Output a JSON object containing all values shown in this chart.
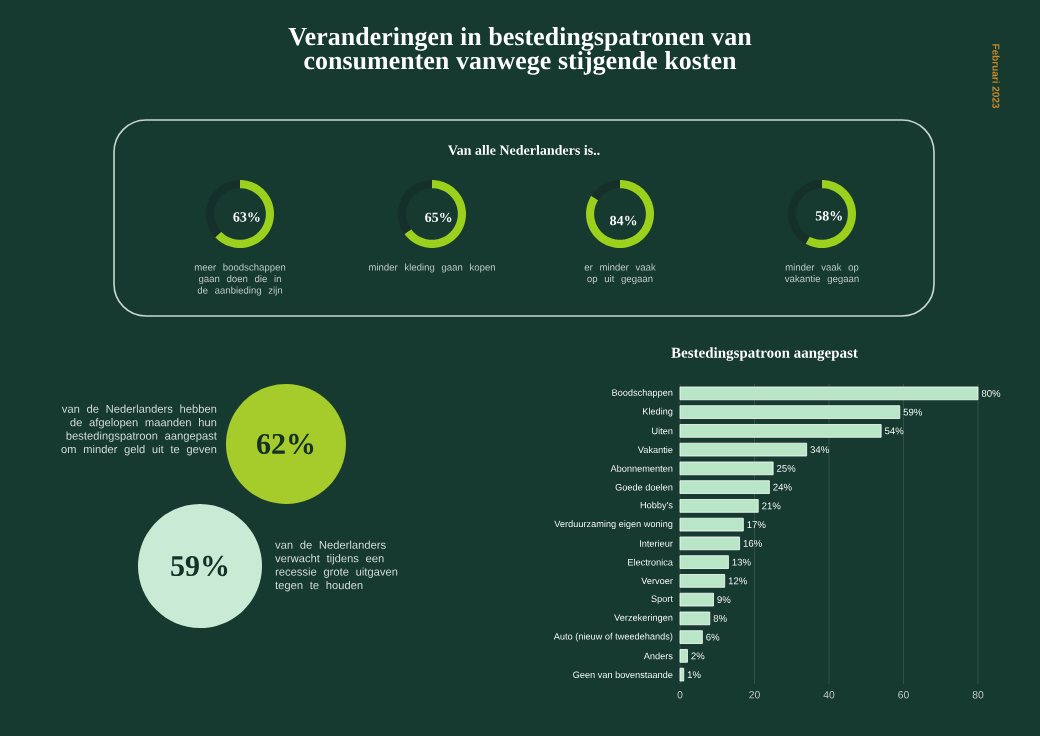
{
  "chart_data": [
    {
      "type": "other",
      "title": "Veranderingen in bestedingspatronen van consumenten vanwege stijgende kosten",
      "annotations": [
        "Februari 2023",
        "Van alle Nederlanders is..",
        "van de Nederlanders hebben de afgelopen maanden hun bestedingspatroon aangepast om minder geld uit te geven",
        "62%",
        "59%",
        "van de Nederlanders verwacht tijdens een recessie grote uitgaven tegen te houden"
      ]
    },
    {
      "type": "donut",
      "categories": [
        "meer boodschappen gaan doen die in de aanbieding zijn",
        null
      ],
      "values": [
        63,
        37
      ],
      "colors": [
        "#9bd11c",
        "#15302a"
      ],
      "value_labels": [
        "63%",
        null
      ]
    },
    {
      "type": "donut",
      "categories": [
        "minder kleding gaan kopen",
        null
      ],
      "values": [
        65,
        35
      ],
      "colors": [
        "#9bd11c",
        "#15302a"
      ],
      "value_labels": [
        "65%",
        null
      ]
    },
    {
      "type": "donut",
      "categories": [
        "er minder vaak op uit gegaan",
        null
      ],
      "values": [
        84,
        16
      ],
      "colors": [
        "#9bd11c",
        "#15302a"
      ],
      "value_labels": [
        "84%",
        null
      ]
    },
    {
      "type": "donut",
      "categories": [
        "minder vaak op vakantie gegaan",
        null
      ],
      "values": [
        58,
        42
      ],
      "colors": [
        "#9bd11c",
        "#15302a"
      ],
      "value_labels": [
        "58%",
        null
      ]
    },
    {
      "type": "bar",
      "orientation": "horizontal",
      "title": "Bestedingspatroon aangepast",
      "categories": [
        "Boodschappen",
        "Kleding",
        "Uiten",
        "Vakantie",
        "Abonnementen",
        "Goede doelen",
        "Hobby's",
        "Verduurzaming eigen woning",
        "Interieur",
        "Electronica",
        "Vervoer",
        "Sport",
        "Verzekeringen",
        "Auto (nieuw of tweedehands)",
        "Anders",
        "Geen van bovenstaande"
      ],
      "values": [
        80,
        59,
        54,
        34,
        25,
        24,
        21,
        17,
        16,
        13,
        12,
        9,
        8,
        6,
        2,
        1
      ],
      "value_labels": [
        "80%",
        "59%",
        "54%",
        "34%",
        "25%",
        "24%",
        "21%",
        "17%",
        "16%",
        "13%",
        "12%",
        "9%",
        "8%",
        "6%",
        "2%",
        "1%"
      ],
      "color": "#b8e6c6",
      "xlim": [
        0,
        80
      ],
      "xticks": [
        0,
        20,
        40,
        60,
        80
      ],
      "grid": "x"
    }
  ]
}
